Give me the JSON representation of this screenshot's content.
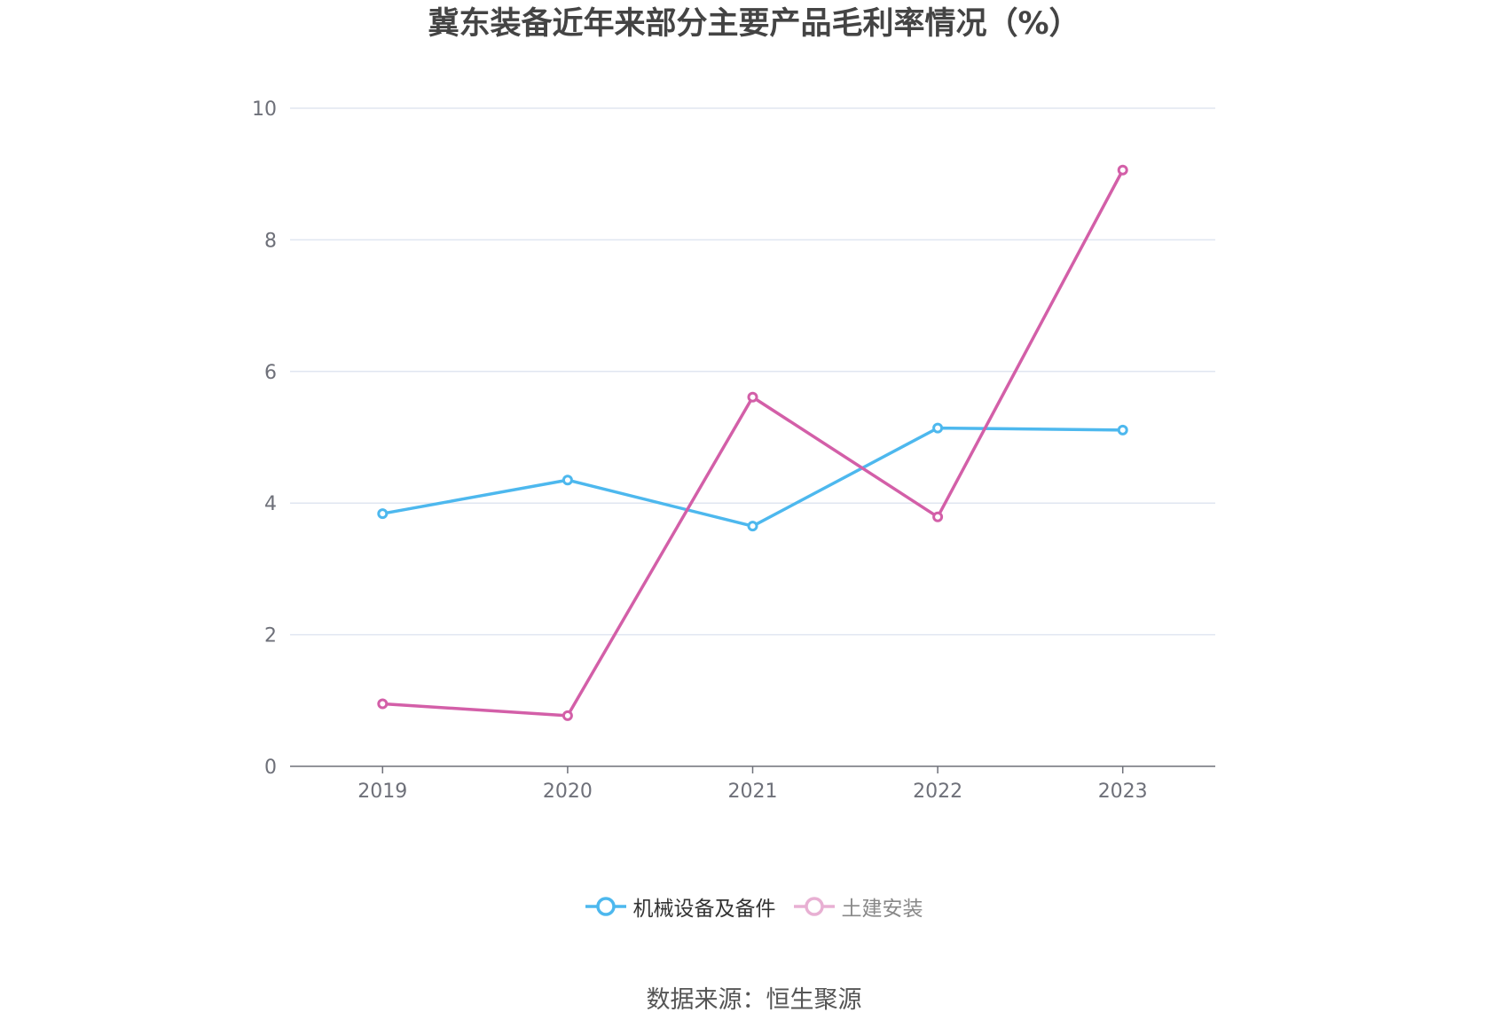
{
  "chart_data": {
    "type": "line",
    "title": "冀东装备近年来部分主要产品毛利率情况（%）",
    "categories": [
      "2019",
      "2020",
      "2021",
      "2022",
      "2023"
    ],
    "series": [
      {
        "name": "机械设备及备件",
        "values": [
          3.84,
          4.35,
          3.65,
          5.14,
          5.11
        ],
        "color": "#4db8ee"
      },
      {
        "name": "土建安装",
        "values": [
          0.95,
          0.77,
          5.61,
          3.79,
          9.06
        ],
        "color": "#d35fa8"
      }
    ],
    "ylim": [
      0,
      10
    ],
    "yticks": [
      0,
      2,
      4,
      6,
      8,
      10
    ],
    "grid": true,
    "legend_position": "bottom",
    "legend_inactive_color": "#e8b0d3",
    "source": "数据来源：恒生聚源"
  }
}
